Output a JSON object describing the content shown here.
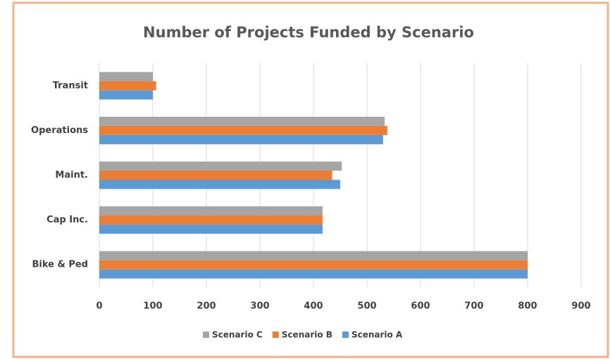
{
  "chart_data": {
    "type": "hbar",
    "title": "Number of Projects Funded by Scenario",
    "categories": [
      "Bike & Ped",
      "Cap Inc.",
      "Maint.",
      "Operations",
      "Transit"
    ],
    "series": [
      {
        "name": "Scenario A",
        "color": "#5b9bd5",
        "values": [
          800,
          417,
          450,
          530,
          100
        ]
      },
      {
        "name": "Scenario B",
        "color": "#ed7d31",
        "values": [
          800,
          417,
          435,
          538,
          106
        ]
      },
      {
        "name": "Scenario C",
        "color": "#a5a5a5",
        "values": [
          800,
          417,
          453,
          533,
          100
        ]
      }
    ],
    "xlim": [
      0,
      900
    ],
    "xticks": [
      0,
      100,
      200,
      300,
      400,
      500,
      600,
      700,
      800,
      900
    ],
    "grid": true
  }
}
